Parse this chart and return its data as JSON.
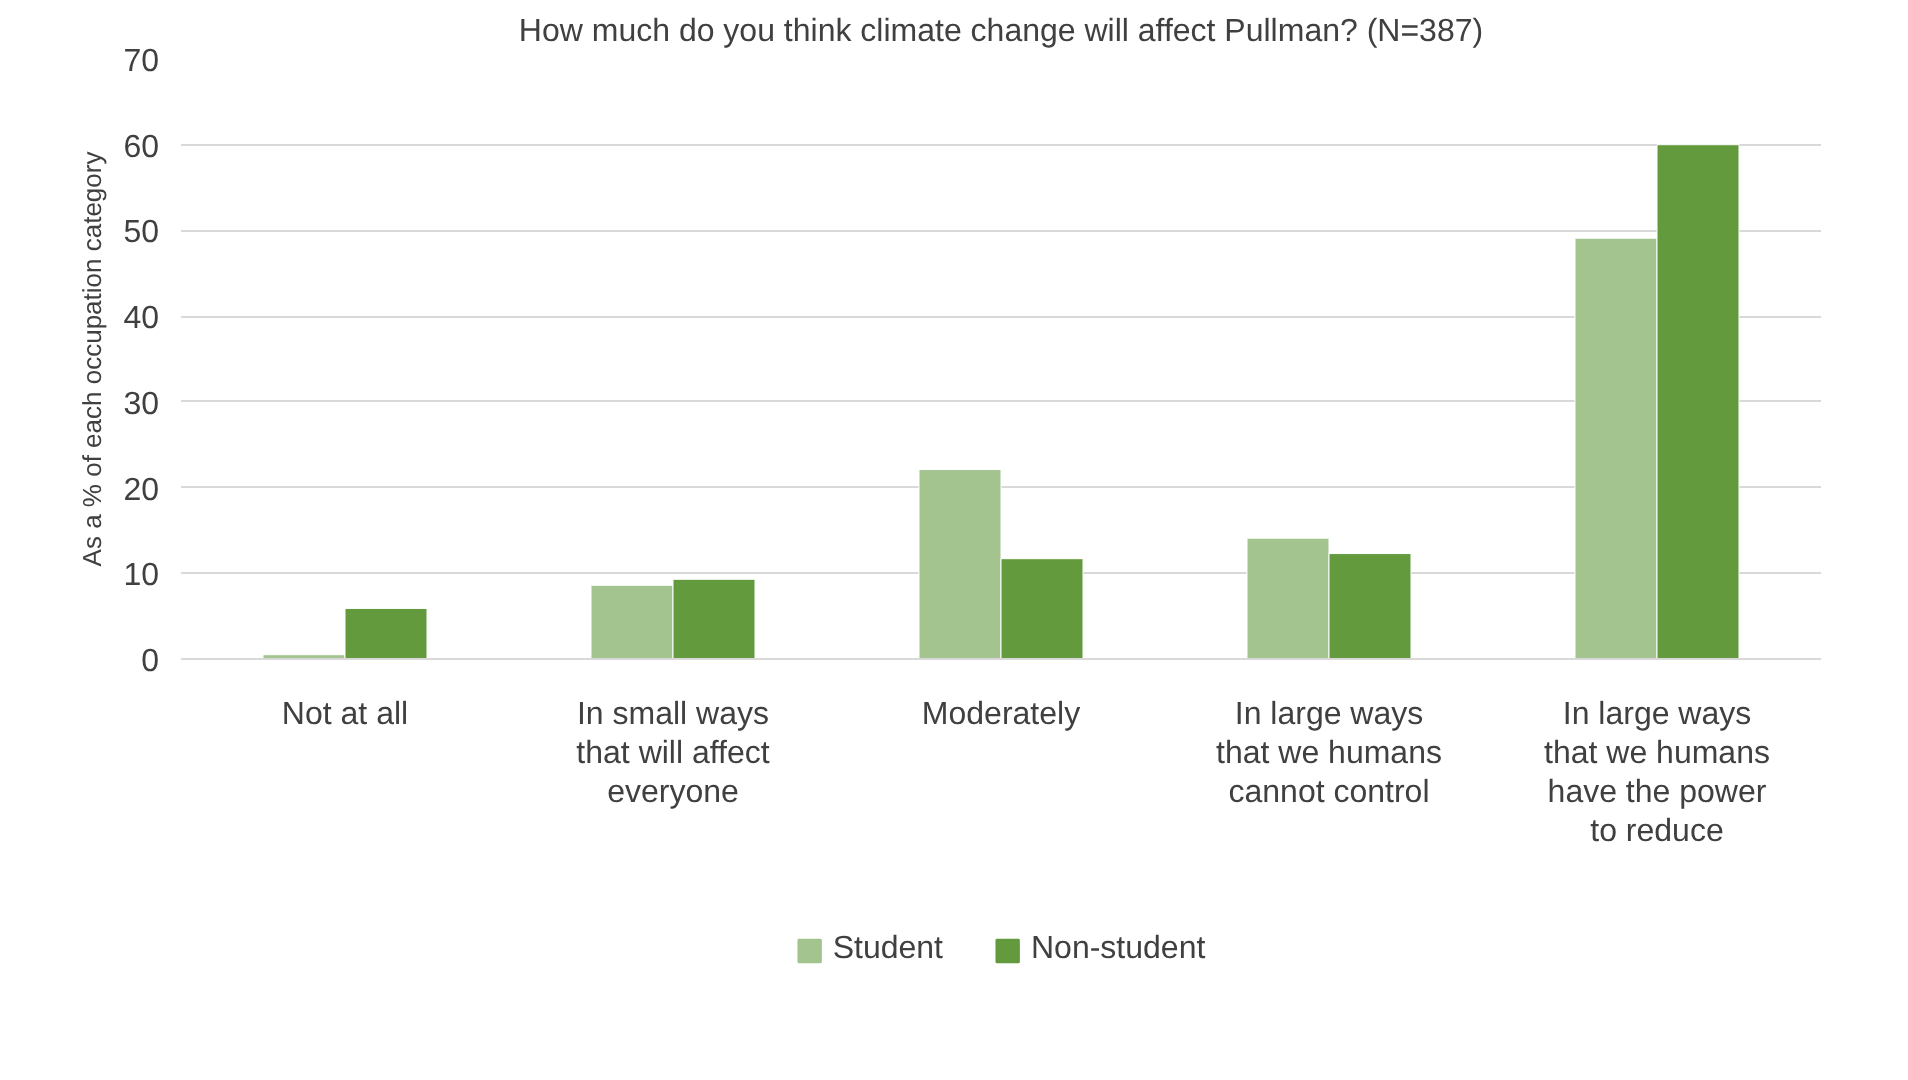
{
  "chart_data": {
    "type": "bar",
    "title": "How much do you think climate change will affect Pullman? (N=387)",
    "ylabel": "As a % of each occupation category",
    "categories": [
      "Not at all",
      "In small ways that will affect everyone",
      "Moderately",
      "In large ways that we humans cannot control",
      "In large ways that we humans have the power to reduce"
    ],
    "series": [
      {
        "name": "Student",
        "color": "#a3c48f",
        "values": [
          0.5,
          8.6,
          22.1,
          14.1,
          49.1
        ]
      },
      {
        "name": "Non-student",
        "color": "#629a3d",
        "values": [
          5.9,
          9.3,
          11.7,
          12.3,
          60.0
        ]
      }
    ],
    "ylim": [
      0,
      70
    ],
    "yticks": [
      0,
      10,
      20,
      30,
      40,
      50,
      60,
      70
    ],
    "grid": "y",
    "legend": "bottom"
  }
}
